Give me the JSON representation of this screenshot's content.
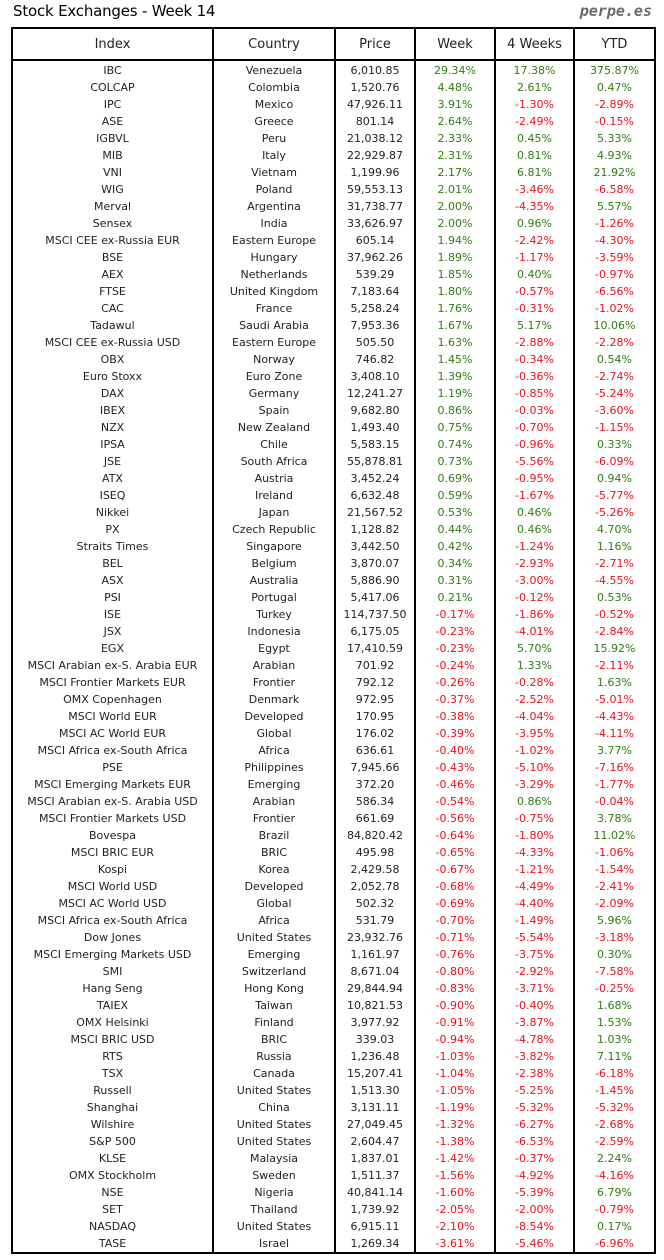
{
  "header": {
    "title": "Stock Exchanges - Week 14",
    "brand": "perpe.es"
  },
  "colors": {
    "positive": "#2e7d10",
    "negative": "#e8101c"
  },
  "table": {
    "columns": [
      "Index",
      "Country",
      "Price",
      "Week",
      "4 Weeks",
      "YTD"
    ],
    "rows": [
      [
        "IBC",
        "Venezuela",
        "6,010.85",
        "29.34%",
        "17.38%",
        "375.87%"
      ],
      [
        "COLCAP",
        "Colombia",
        "1,520.76",
        "4.48%",
        "2.61%",
        "0.47%"
      ],
      [
        "IPC",
        "Mexico",
        "47,926.11",
        "3.91%",
        "-1.30%",
        "-2.89%"
      ],
      [
        "ASE",
        "Greece",
        "801.14",
        "2.64%",
        "-2.49%",
        "-0.15%"
      ],
      [
        "IGBVL",
        "Peru",
        "21,038.12",
        "2.33%",
        "0.45%",
        "5.33%"
      ],
      [
        "MIB",
        "Italy",
        "22,929.87",
        "2.31%",
        "0.81%",
        "4.93%"
      ],
      [
        "VNI",
        "Vietnam",
        "1,199.96",
        "2.17%",
        "6.81%",
        "21.92%"
      ],
      [
        "WIG",
        "Poland",
        "59,553.13",
        "2.01%",
        "-3.46%",
        "-6.58%"
      ],
      [
        "Merval",
        "Argentina",
        "31,738.77",
        "2.00%",
        "-4.35%",
        "5.57%"
      ],
      [
        "Sensex",
        "India",
        "33,626.97",
        "2.00%",
        "0.96%",
        "-1.26%"
      ],
      [
        "MSCI CEE ex-Russia EUR",
        "Eastern Europe",
        "605.14",
        "1.94%",
        "-2.42%",
        "-4.30%"
      ],
      [
        "BSE",
        "Hungary",
        "37,962.26",
        "1.89%",
        "-1.17%",
        "-3.59%"
      ],
      [
        "AEX",
        "Netherlands",
        "539.29",
        "1.85%",
        "0.40%",
        "-0.97%"
      ],
      [
        "FTSE",
        "United Kingdom",
        "7,183.64",
        "1.80%",
        "-0.57%",
        "-6.56%"
      ],
      [
        "CAC",
        "France",
        "5,258.24",
        "1.76%",
        "-0.31%",
        "-1.02%"
      ],
      [
        "Tadawul",
        "Saudi Arabia",
        "7,953.36",
        "1.67%",
        "5.17%",
        "10.06%"
      ],
      [
        "MSCI CEE ex-Russia USD",
        "Eastern Europe",
        "505.50",
        "1.63%",
        "-2.88%",
        "-2.28%"
      ],
      [
        "OBX",
        "Norway",
        "746.82",
        "1.45%",
        "-0.34%",
        "0.54%"
      ],
      [
        "Euro Stoxx",
        "Euro Zone",
        "3,408.10",
        "1.39%",
        "-0.36%",
        "-2.74%"
      ],
      [
        "DAX",
        "Germany",
        "12,241.27",
        "1.19%",
        "-0.85%",
        "-5.24%"
      ],
      [
        "IBEX",
        "Spain",
        "9,682.80",
        "0.86%",
        "-0.03%",
        "-3.60%"
      ],
      [
        "NZX",
        "New Zealand",
        "1,493.40",
        "0.75%",
        "-0.70%",
        "-1.15%"
      ],
      [
        "IPSA",
        "Chile",
        "5,583.15",
        "0.74%",
        "-0.96%",
        "0.33%"
      ],
      [
        "JSE",
        "South Africa",
        "55,878.81",
        "0.73%",
        "-5.56%",
        "-6.09%"
      ],
      [
        "ATX",
        "Austria",
        "3,452.24",
        "0.69%",
        "-0.95%",
        "0.94%"
      ],
      [
        "ISEQ",
        "Ireland",
        "6,632.48",
        "0.59%",
        "-1.67%",
        "-5.77%"
      ],
      [
        "Nikkei",
        "Japan",
        "21,567.52",
        "0.53%",
        "0.46%",
        "-5.26%"
      ],
      [
        "PX",
        "Czech Republic",
        "1,128.82",
        "0.44%",
        "0.46%",
        "4.70%"
      ],
      [
        "Straits Times",
        "Singapore",
        "3,442.50",
        "0.42%",
        "-1.24%",
        "1.16%"
      ],
      [
        "BEL",
        "Belgium",
        "3,870.07",
        "0.34%",
        "-2.93%",
        "-2.71%"
      ],
      [
        "ASX",
        "Australia",
        "5,886.90",
        "0.31%",
        "-3.00%",
        "-4.55%"
      ],
      [
        "PSI",
        "Portugal",
        "5,417.06",
        "0.21%",
        "-0.12%",
        "0.53%"
      ],
      [
        "ISE",
        "Turkey",
        "114,737.50",
        "-0.17%",
        "-1.86%",
        "-0.52%"
      ],
      [
        "JSX",
        "Indonesia",
        "6,175.05",
        "-0.23%",
        "-4.01%",
        "-2.84%"
      ],
      [
        "EGX",
        "Egypt",
        "17,410.59",
        "-0.23%",
        "5.70%",
        "15.92%"
      ],
      [
        "MSCI Arabian ex-S. Arabia EUR",
        "Arabian",
        "701.92",
        "-0.24%",
        "1.33%",
        "-2.11%"
      ],
      [
        "MSCI Frontier Markets EUR",
        "Frontier",
        "792.12",
        "-0.26%",
        "-0.28%",
        "1.63%"
      ],
      [
        "OMX Copenhagen",
        "Denmark",
        "972.95",
        "-0.37%",
        "-2.52%",
        "-5.01%"
      ],
      [
        "MSCI World EUR",
        "Developed",
        "170.95",
        "-0.38%",
        "-4.04%",
        "-4.43%"
      ],
      [
        "MSCI AC World EUR",
        "Global",
        "176.02",
        "-0.39%",
        "-3.95%",
        "-4.11%"
      ],
      [
        "MSCI Africa ex-South Africa",
        "Africa",
        "636.61",
        "-0.40%",
        "-1.02%",
        "3.77%"
      ],
      [
        "PSE",
        "Philippines",
        "7,945.66",
        "-0.43%",
        "-5.10%",
        "-7.16%"
      ],
      [
        "MSCI Emerging Markets EUR",
        "Emerging",
        "372.20",
        "-0.46%",
        "-3.29%",
        "-1.77%"
      ],
      [
        "MSCI Arabian ex-S. Arabia USD",
        "Arabian",
        "586.34",
        "-0.54%",
        "0.86%",
        "-0.04%"
      ],
      [
        "MSCI Frontier Markets USD",
        "Frontier",
        "661.69",
        "-0.56%",
        "-0.75%",
        "3.78%"
      ],
      [
        "Bovespa",
        "Brazil",
        "84,820.42",
        "-0.64%",
        "-1.80%",
        "11.02%"
      ],
      [
        "MSCI BRIC EUR",
        "BRIC",
        "495.98",
        "-0.65%",
        "-4.33%",
        "-1.06%"
      ],
      [
        "Kospi",
        "Korea",
        "2,429.58",
        "-0.67%",
        "-1.21%",
        "-1.54%"
      ],
      [
        "MSCI World USD",
        "Developed",
        "2,052.78",
        "-0.68%",
        "-4.49%",
        "-2.41%"
      ],
      [
        "MSCI AC World USD",
        "Global",
        "502.32",
        "-0.69%",
        "-4.40%",
        "-2.09%"
      ],
      [
        "MSCI Africa ex-South Africa",
        "Africa",
        "531.79",
        "-0.70%",
        "-1.49%",
        "5.96%"
      ],
      [
        "Dow Jones",
        "United States",
        "23,932.76",
        "-0.71%",
        "-5.54%",
        "-3.18%"
      ],
      [
        "MSCI Emerging Markets USD",
        "Emerging",
        "1,161.97",
        "-0.76%",
        "-3.75%",
        "0.30%"
      ],
      [
        "SMI",
        "Switzerland",
        "8,671.04",
        "-0.80%",
        "-2.92%",
        "-7.58%"
      ],
      [
        "Hang Seng",
        "Hong Kong",
        "29,844.94",
        "-0.83%",
        "-3.71%",
        "-0.25%"
      ],
      [
        "TAIEX",
        "Taiwan",
        "10,821.53",
        "-0.90%",
        "-0.40%",
        "1.68%"
      ],
      [
        "OMX Helsinki",
        "Finland",
        "3,977.92",
        "-0.91%",
        "-3.87%",
        "1.53%"
      ],
      [
        "MSCI BRIC USD",
        "BRIC",
        "339.03",
        "-0.94%",
        "-4.78%",
        "1.03%"
      ],
      [
        "RTS",
        "Russia",
        "1,236.48",
        "-1.03%",
        "-3.82%",
        "7.11%"
      ],
      [
        "TSX",
        "Canada",
        "15,207.41",
        "-1.04%",
        "-2.38%",
        "-6.18%"
      ],
      [
        "Russell",
        "United States",
        "1,513.30",
        "-1.05%",
        "-5.25%",
        "-1.45%"
      ],
      [
        "Shanghai",
        "China",
        "3,131.11",
        "-1.19%",
        "-5.32%",
        "-5.32%"
      ],
      [
        "Wilshire",
        "United States",
        "27,049.45",
        "-1.32%",
        "-6.27%",
        "-2.68%"
      ],
      [
        "S&P 500",
        "United States",
        "2,604.47",
        "-1.38%",
        "-6.53%",
        "-2.59%"
      ],
      [
        "KLSE",
        "Malaysia",
        "1,837.01",
        "-1.42%",
        "-0.37%",
        "2.24%"
      ],
      [
        "OMX Stockholm",
        "Sweden",
        "1,511.37",
        "-1.56%",
        "-4.92%",
        "-4.16%"
      ],
      [
        "NSE",
        "Nigeria",
        "40,841.14",
        "-1.60%",
        "-5.39%",
        "6.79%"
      ],
      [
        "SET",
        "Thailand",
        "1,739.92",
        "-2.05%",
        "-2.00%",
        "-0.79%"
      ],
      [
        "NASDAQ",
        "United States",
        "6,915.11",
        "-2.10%",
        "-8.54%",
        "0.17%"
      ],
      [
        "TASE",
        "Israel",
        "1,269.34",
        "-3.61%",
        "-5.46%",
        "-6.96%"
      ]
    ]
  }
}
